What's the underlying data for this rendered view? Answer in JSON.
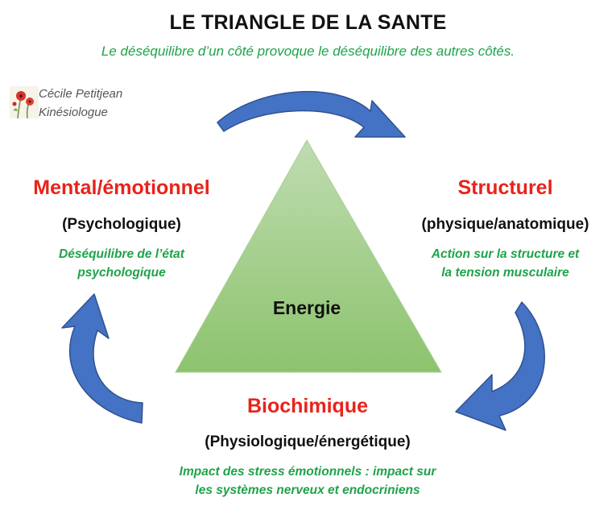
{
  "title": "LE TRIANGLE DE LA SANTE",
  "subtitle": "Le déséquilibre d’un côté provoque le déséquilibre des autres côtés.",
  "author": {
    "name": "Cécile Petitjean",
    "role": "Kinésiologue"
  },
  "center": "Energie",
  "nodes": {
    "mental": {
      "title": "Mental/émotionnel",
      "sub": "(Psychologique)",
      "desc1": "Déséquilibre  de l’état",
      "desc2": "psychologique"
    },
    "structurel": {
      "title": "Structurel",
      "sub": "(physique/anatomique)",
      "desc1": "Action sur la structure  et",
      "desc2": "la tension musculaire"
    },
    "biochimique": {
      "title": "Biochimique",
      "sub": "(Physiologique/énergétique)",
      "desc1": "Impact des stress émotionnels  : impact sur",
      "desc2": "les systèmes nerveux et endocriniens"
    }
  },
  "colors": {
    "triangle_top": "#b9d9ab",
    "triangle_bottom": "#8dc36f",
    "arrow": "#4472c4",
    "arrow_edge": "#2f528f",
    "node_title": "#e8231b",
    "desc": "#1ea34a"
  },
  "icons": {
    "logo": "poppy-flower-icon"
  }
}
